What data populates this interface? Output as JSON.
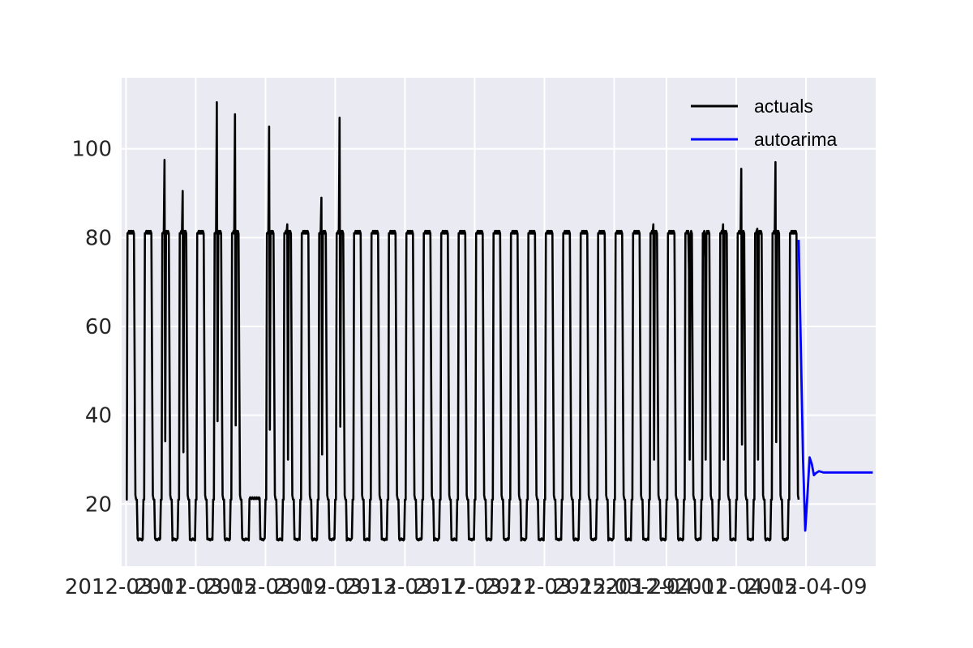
{
  "chart_data": {
    "type": "line",
    "title": "",
    "xlabel": "",
    "ylabel": "",
    "grid": true,
    "legend_position": "top-right",
    "xlim": [
      "2012-02-29T18:00",
      "2012-04-13"
    ],
    "ylim": [
      6,
      116
    ],
    "x_ticks": [
      "2012-03-01",
      "2012-03-05",
      "2012-03-09",
      "2012-03-13",
      "2012-03-17",
      "2012-03-21",
      "2012-03-25",
      "2012-03-29",
      "2012-04-01",
      "2012-04-05",
      "2012-04-09"
    ],
    "x_tick_labels": [
      "2012-03-01",
      "2012-03-05",
      "2012-03-09",
      "2012-03-13",
      "2012-03-17",
      "2012-03-21",
      "2012-03-25",
      "2012-03-29",
      "2012-04-01",
      "2012-04-05",
      "2012-04-09"
    ],
    "y_ticks": [
      20,
      40,
      60,
      80,
      100
    ],
    "y_tick_labels": [
      "20",
      "40",
      "60",
      "80",
      "100"
    ],
    "series": [
      {
        "name": "actuals",
        "color": "#000000",
        "start": "2012-03-01",
        "end": "2012-04-08T14:00",
        "baseline": 11.8,
        "shoulder": 21,
        "typical_peak": 81.5,
        "spike_days": [
          {
            "day": "2012-03-03",
            "peak": 97.5
          },
          {
            "day": "2012-03-04",
            "peak": 90.5
          },
          {
            "day": "2012-03-06",
            "peak": 110.5
          },
          {
            "day": "2012-03-07",
            "peak": 107.8
          },
          {
            "day": "2012-03-09",
            "peak": 105
          },
          {
            "day": "2012-03-10",
            "peak": 83
          },
          {
            "day": "2012-03-12",
            "peak": 89
          },
          {
            "day": "2012-03-13",
            "peak": 107
          },
          {
            "day": "2012-03-31",
            "peak": 83
          },
          {
            "day": "2012-04-02",
            "peak": 72.5
          },
          {
            "day": "2012-04-03",
            "peak": 75.5
          },
          {
            "day": "2012-04-04",
            "peak": 83
          },
          {
            "day": "2012-04-05",
            "peak": 95.5
          },
          {
            "day": "2012-04-06",
            "peak": 82
          },
          {
            "day": "2012-04-07",
            "peak": 97
          }
        ],
        "low_days": [
          {
            "day": "2012-03-08",
            "peak": 21.5
          }
        ]
      },
      {
        "name": "autoarima",
        "color": "#0000ff",
        "points": [
          [
            "2012-04-08T14:00",
            79.5
          ],
          [
            "2012-04-08T17:00",
            55
          ],
          [
            "2012-04-08T20:00",
            30
          ],
          [
            "2012-04-08T23:00",
            14
          ],
          [
            "2012-04-09T02:00",
            22
          ],
          [
            "2012-04-09T05:00",
            30.5
          ],
          [
            "2012-04-09T08:00",
            29
          ],
          [
            "2012-04-09T11:00",
            26.5
          ],
          [
            "2012-04-09T14:00",
            27
          ],
          [
            "2012-04-09T18:00",
            27.4
          ],
          [
            "2012-04-10T00:00",
            27.1
          ],
          [
            "2012-04-11T00:00",
            27.1
          ],
          [
            "2012-04-12T00:00",
            27.1
          ],
          [
            "2012-04-12T20:00",
            27.1
          ]
        ]
      }
    ]
  }
}
